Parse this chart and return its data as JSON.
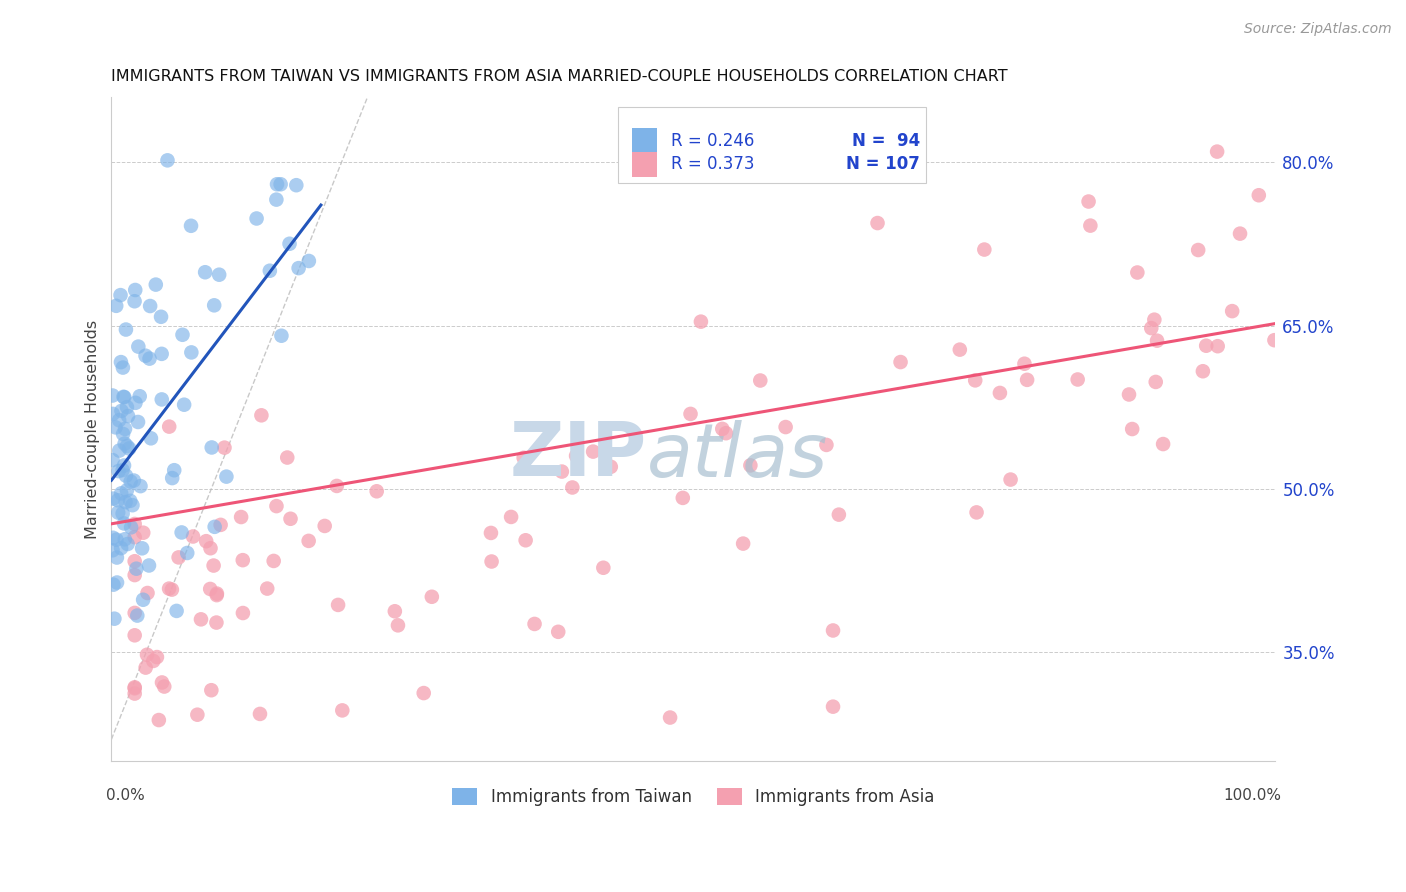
{
  "title": "IMMIGRANTS FROM TAIWAN VS IMMIGRANTS FROM ASIA MARRIED-COUPLE HOUSEHOLDS CORRELATION CHART",
  "source_text": "Source: ZipAtlas.com",
  "ylabel": "Married-couple Households",
  "right_yticklabels": [
    "35.0%",
    "50.0%",
    "65.0%",
    "80.0%"
  ],
  "right_yticks": [
    0.35,
    0.5,
    0.65,
    0.8
  ],
  "legend_label1": "Immigrants from Taiwan",
  "legend_label2": "Immigrants from Asia",
  "blue_color": "#7EB3E8",
  "pink_color": "#F4A0B0",
  "trend_blue": "#2255BB",
  "trend_pink": "#EE5577",
  "diag_color": "#BBBBBB",
  "watermark_zip_color": "#C8D8E8",
  "watermark_atlas_color": "#A8C0D0",
  "ylim_low": 0.25,
  "ylim_high": 0.86,
  "xlim_low": 0.0,
  "xlim_high": 1.0
}
